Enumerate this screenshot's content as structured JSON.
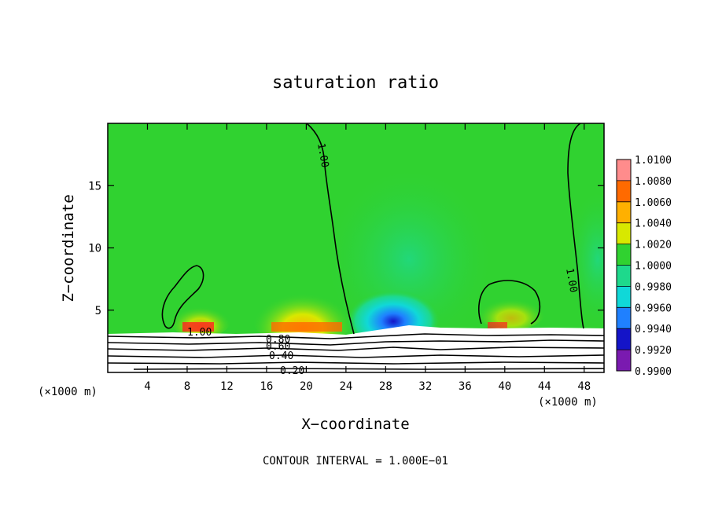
{
  "chart_data": {
    "type": "heatmap",
    "title": "saturation ratio",
    "xlabel": "X−coordinate",
    "ylabel": "Z−coordinate",
    "x_unit_left": "(×1000 m)",
    "x_unit_right": "(×1000 m)",
    "xlim": [
      0,
      50
    ],
    "ylim": [
      0,
      20
    ],
    "x_ticks": [
      4,
      8,
      12,
      16,
      20,
      24,
      28,
      32,
      36,
      40,
      44,
      48
    ],
    "y_ticks": [
      5,
      10,
      15
    ],
    "colorbar": {
      "levels": [
        "1.0100",
        "1.0080",
        "1.0060",
        "1.0040",
        "1.0020",
        "1.0000",
        "0.9980",
        "0.9960",
        "0.9940",
        "0.9920",
        "0.9900"
      ],
      "colors": [
        "#ff8c8c",
        "#ff2020",
        "#ff6a00",
        "#ffb000",
        "#d8e800",
        "#30d230",
        "#1ed98c",
        "#10d8d8",
        "#1f80ff",
        "#1414c8",
        "#7a1ab0"
      ]
    },
    "contour_labels": [
      "1.00",
      "1.00",
      "1.00",
      "0.80",
      "0.60",
      "0.40",
      "0.20"
    ],
    "contour_interval_text": "CONTOUR INTERVAL = 1.000E−01"
  }
}
